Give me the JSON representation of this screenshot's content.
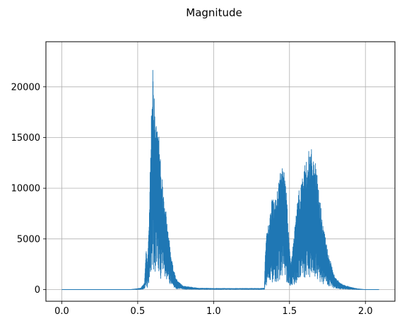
{
  "chart_data": {
    "type": "line",
    "title": "Magnitude",
    "xlabel": "",
    "ylabel": "",
    "xlim": [
      -0.1045,
      2.1945
    ],
    "ylim": [
      -1150,
      24450
    ],
    "xticks": [
      0.0,
      0.5,
      1.0,
      1.5,
      2.0
    ],
    "xtick_labels": [
      "0.0",
      "0.5",
      "1.0",
      "1.5",
      "2.0"
    ],
    "yticks": [
      0,
      5000,
      10000,
      15000,
      20000
    ],
    "ytick_labels": [
      "0",
      "5000",
      "10000",
      "15000",
      "20000"
    ],
    "grid": true,
    "series": [
      {
        "color": "#1f77b4",
        "envelope": [
          [
            0.0,
            0
          ],
          [
            0.45,
            0
          ],
          [
            0.48,
            60
          ],
          [
            0.52,
            150
          ],
          [
            0.545,
            700
          ],
          [
            0.555,
            4100
          ],
          [
            0.565,
            2500
          ],
          [
            0.575,
            6500
          ],
          [
            0.585,
            14000
          ],
          [
            0.595,
            22000
          ],
          [
            0.6,
            23300
          ],
          [
            0.605,
            21000
          ],
          [
            0.615,
            17000
          ],
          [
            0.63,
            16400
          ],
          [
            0.645,
            15000
          ],
          [
            0.655,
            12500
          ],
          [
            0.665,
            10500
          ],
          [
            0.68,
            8500
          ],
          [
            0.7,
            6000
          ],
          [
            0.72,
            3500
          ],
          [
            0.74,
            1800
          ],
          [
            0.76,
            900
          ],
          [
            0.8,
            350
          ],
          [
            0.9,
            150
          ],
          [
            1.0,
            120
          ],
          [
            1.1,
            120
          ],
          [
            1.2,
            120
          ],
          [
            1.3,
            120
          ],
          [
            1.335,
            150
          ],
          [
            1.34,
            3800
          ],
          [
            1.35,
            5500
          ],
          [
            1.37,
            7200
          ],
          [
            1.38,
            8500
          ],
          [
            1.39,
            9300
          ],
          [
            1.4,
            8800
          ],
          [
            1.42,
            10000
          ],
          [
            1.44,
            12000
          ],
          [
            1.45,
            12200
          ],
          [
            1.47,
            11500
          ],
          [
            1.48,
            9800
          ],
          [
            1.49,
            7000
          ],
          [
            1.5,
            4200
          ],
          [
            1.51,
            2500
          ],
          [
            1.53,
            5500
          ],
          [
            1.55,
            8500
          ],
          [
            1.57,
            10500
          ],
          [
            1.6,
            12200
          ],
          [
            1.62,
            13500
          ],
          [
            1.64,
            14000
          ],
          [
            1.66,
            13200
          ],
          [
            1.67,
            12500
          ],
          [
            1.68,
            11500
          ],
          [
            1.7,
            9000
          ],
          [
            1.72,
            6500
          ],
          [
            1.75,
            4000
          ],
          [
            1.78,
            2200
          ],
          [
            1.8,
            1200
          ],
          [
            1.85,
            500
          ],
          [
            1.9,
            250
          ],
          [
            1.95,
            80
          ],
          [
            2.0,
            0
          ],
          [
            2.09,
            0
          ]
        ]
      }
    ]
  }
}
